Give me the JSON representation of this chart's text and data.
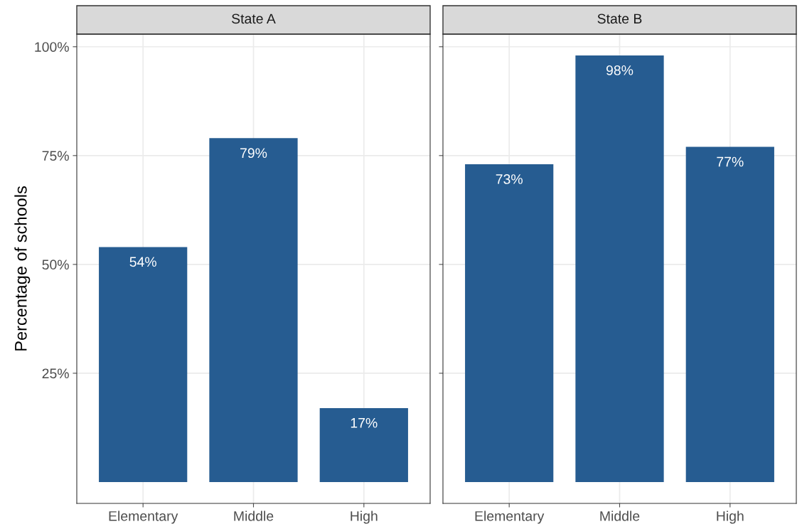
{
  "chart_data": [
    {
      "type": "bar",
      "title": "State A",
      "ylabel": "Percentage of schools",
      "categories": [
        "Elementary",
        "Middle",
        "High"
      ],
      "series": [
        {
          "color": "#265c91",
          "values": [
            54,
            79,
            17
          ],
          "value_labels": [
            "54%",
            "79%",
            "17%"
          ]
        }
      ],
      "ylim": [
        -4.9,
        102.9
      ],
      "yticks": [
        {
          "value": 25,
          "label": "25%"
        },
        {
          "value": 50,
          "label": "50%"
        },
        {
          "value": 75,
          "label": "75%"
        },
        {
          "value": 100,
          "label": "100%"
        }
      ],
      "grid": true
    },
    {
      "type": "bar",
      "title": "State B",
      "categories": [
        "Elementary",
        "Middle",
        "High"
      ],
      "series": [
        {
          "color": "#265c91",
          "values": [
            73,
            98,
            77
          ],
          "value_labels": [
            "73%",
            "98%",
            "77%"
          ]
        }
      ],
      "ylim": [
        -4.9,
        102.9
      ],
      "yticks": [
        {
          "value": 25,
          "label": null
        },
        {
          "value": 50,
          "label": null
        },
        {
          "value": 75,
          "label": null
        },
        {
          "value": 100,
          "label": null
        }
      ],
      "grid": true,
      "tick_labels": "x"
    }
  ]
}
